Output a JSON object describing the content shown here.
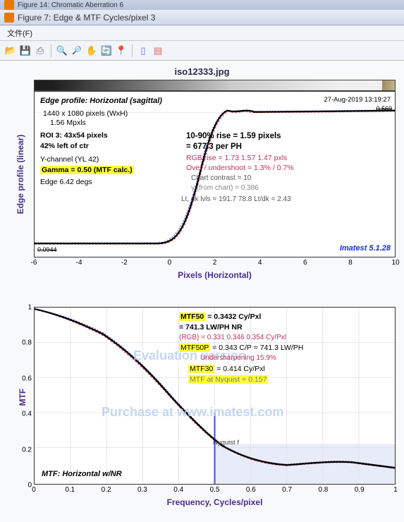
{
  "bg_title": "Figure 14: Chromatic Aberration 6",
  "window_title": "Figure 7: Edge & MTF Cycles/pixel 3",
  "menu_file": "文件(F)",
  "figtitle": "iso12333.jpg",
  "edge": {
    "ylabel": "Edge profile (linear)",
    "xlabel": "Pixels (Horizontal)",
    "heading": "Edge profile: Horizontal (sagittal)",
    "res": "1440 x 1080 pixels (WxH)",
    "mp": "1.56 Mpxls",
    "roi": "ROI 3:  43x54 pixels",
    "leftctr": "42% left of ctr",
    "ych": "Y-channel  (YL 42)",
    "gamma": "Gamma = 0.50 (MTF calc.)",
    "edge_deg": "Edge   6.42 degs",
    "timestamp": "27-Aug-2019 13:19:27",
    "rise1": "10-90% rise = 1.59 pixels",
    "rise2": "= 677.3  per PH",
    "rgb": "RGB rise =   1.73     1.57    1.47 pxls",
    "overshoot": "Over / undershoot =   1.3% /   0.7%",
    "contrast": "Chart contrast = 10",
    "gamma_chart": "γ (from chart) = 0.386",
    "ltdk": "Lt, dk lvls =  191.7   78.8   Lt/dk = 2.43",
    "imatest": "Imatest 5.1.28",
    "val_lo": "0.0944",
    "val_hi": "0.569",
    "xticks": [
      "-6",
      "-4",
      "-2",
      "0",
      "2",
      "4",
      "6",
      "8",
      "10"
    ],
    "colors": {
      "black": "#000000",
      "r": "#e04050",
      "g": "#20a020",
      "b": "#3040e0"
    }
  },
  "mtf": {
    "ylabel": "MTF",
    "xlabel": "Frequency, Cycles/pixel",
    "mtf50_label": "MTF50",
    "mtf50_val": " = 0.3432 Cy/Pxl",
    "mtf50_lw": "= 741.3 LW/PH  NR",
    "rgb": "(RGB) = 0.331   0.346   0.354 Cy/Pxl",
    "mtf50p_label": "MTF50P",
    "mtf50p_val": " = 0.343 C/P = 741.3 LW/PH",
    "undersh": "Undersharpening 15.9%",
    "mtf30_label": "MTF30",
    "mtf30_val": " = 0.414 Cy/Pxl",
    "nyq": "MTF at Nyquist = 0.157",
    "nyquist_label": "Nyquist f",
    "bottom_label": "MTF: Horizontal w/NR",
    "wm1": "Evaluation version",
    "wm2": "Purchase at www.imatest.com",
    "xticks": [
      "0",
      "0.1",
      "0.2",
      "0.3",
      "0.4",
      "0.5",
      "0.6",
      "0.7",
      "0.8",
      "0.9",
      "1"
    ],
    "yticks": [
      "0",
      "0.2",
      "0.4",
      "0.6",
      "0.8",
      "1"
    ]
  }
}
